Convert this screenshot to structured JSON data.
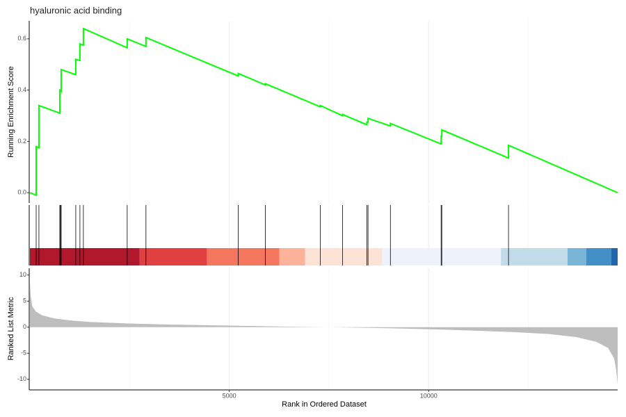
{
  "chart_data": {
    "type": "gsea",
    "title": "hyaluronic acid binding",
    "x_label": "Rank in Ordered Dataset",
    "xlim": [
      0,
      14740
    ],
    "xticks": [
      5000,
      10000
    ],
    "xgrid_minor": [
      2500,
      7500,
      12500
    ],
    "running": {
      "y_label": "Running Enrichment Score",
      "color": "#00ff00",
      "ylim": [
        -0.04,
        0.67
      ],
      "yticks": [
        {
          "value": 0,
          "label": "0.0"
        },
        0.2,
        0.4,
        0.6
      ],
      "x": [
        0,
        157,
        157,
        226,
        226,
        750,
        750,
        784,
        784,
        1150,
        1150,
        1254,
        1254,
        1341,
        1341,
        2440,
        2440,
        2910,
        2910,
        5226,
        5226,
        5906,
        5906,
        7282,
        7282,
        7840,
        7840,
        8450,
        8450,
        8480,
        8480,
        9041,
        9041,
        10313,
        10313,
        10330,
        10330,
        12003,
        12003,
        14740
      ],
      "values": [
        0,
        -0.01,
        0.18,
        0.175,
        0.34,
        0.31,
        0.4,
        0.395,
        0.48,
        0.46,
        0.52,
        0.515,
        0.58,
        0.575,
        0.64,
        0.565,
        0.6,
        0.57,
        0.605,
        0.455,
        0.465,
        0.42,
        0.425,
        0.335,
        0.34,
        0.3,
        0.305,
        0.265,
        0.275,
        0.274,
        0.29,
        0.26,
        0.27,
        0.19,
        0.22,
        0.22,
        0.245,
        0.135,
        0.185,
        0
      ]
    },
    "hits": [
      157,
      226,
      750,
      767,
      784,
      1150,
      1254,
      1341,
      2440,
      2910,
      5226,
      5906,
      7282,
      7840,
      8450,
      8480,
      9041,
      10313,
      10330,
      12003
    ],
    "band": {
      "edges": [
        0,
        2753,
        4443,
        6254,
        6899,
        8833,
        11812,
        13484,
        13955,
        14582,
        14740
      ],
      "colors": [
        "#b2182b",
        "#e04040",
        "#f4765e",
        "#fcb39a",
        "#fde3d6",
        "#eef3fb",
        "#c2dbe9",
        "#7ab5d8",
        "#4390c7",
        "#2166ac"
      ]
    },
    "metric": {
      "y_label": "Ranked List Metric",
      "color": "#bebebe",
      "ylim": [
        -11.9,
        11.3
      ],
      "yticks": [
        10,
        5,
        0,
        -5,
        -10
      ],
      "x": [
        0,
        20,
        60,
        150,
        300,
        600,
        1000,
        1500,
        2500,
        3500,
        5000,
        6500,
        7500,
        9000,
        10500,
        12000,
        13000,
        13700,
        14200,
        14500,
        14650,
        14700,
        14740
      ],
      "values": [
        8.5,
        6,
        4,
        3,
        2.3,
        1.7,
        1.3,
        1.0,
        0.7,
        0.5,
        0.3,
        0.1,
        0,
        -0.2,
        -0.5,
        -0.9,
        -1.3,
        -1.9,
        -2.8,
        -4,
        -6,
        -8,
        -11
      ]
    }
  }
}
